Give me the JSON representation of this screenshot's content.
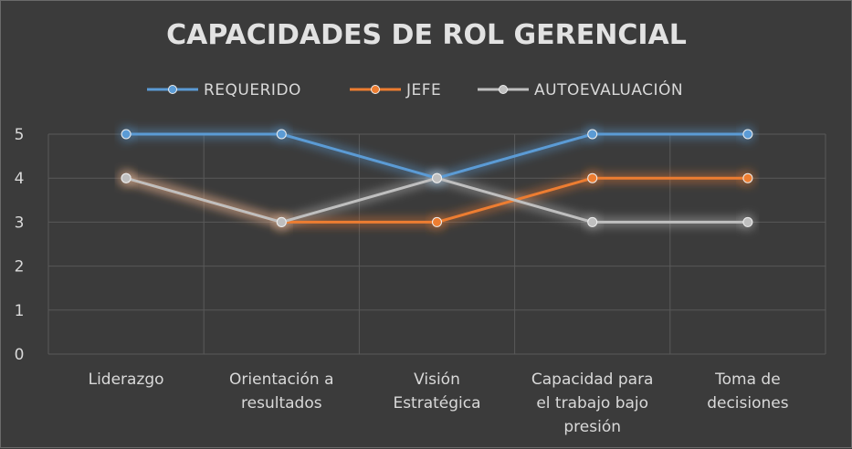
{
  "chart_data": {
    "type": "line",
    "title": "CAPACIDADES DE ROL GERENCIAL",
    "categories": [
      [
        "Liderazgo"
      ],
      [
        "Orientación a",
        "resultados"
      ],
      [
        "Visión",
        "Estratégica"
      ],
      [
        "Capacidad para",
        "el trabajo bajo",
        "presión"
      ],
      [
        "Toma de",
        "decisiones"
      ]
    ],
    "series": [
      {
        "name": "REQUERIDO",
        "color": "#5b9bd5",
        "values": [
          5,
          5,
          4,
          5,
          5
        ]
      },
      {
        "name": "JEFE",
        "color": "#ed7d31",
        "values": [
          4,
          3,
          3,
          4,
          4
        ]
      },
      {
        "name": "AUTOEVALUACIÓN",
        "color": "#bfbfbf",
        "values": [
          4,
          3,
          4,
          3,
          3
        ]
      }
    ],
    "ylim": [
      0,
      5
    ],
    "yticks": [
      "0",
      "1",
      "2",
      "3",
      "4",
      "5"
    ],
    "grid": true,
    "legend_position": "top"
  }
}
